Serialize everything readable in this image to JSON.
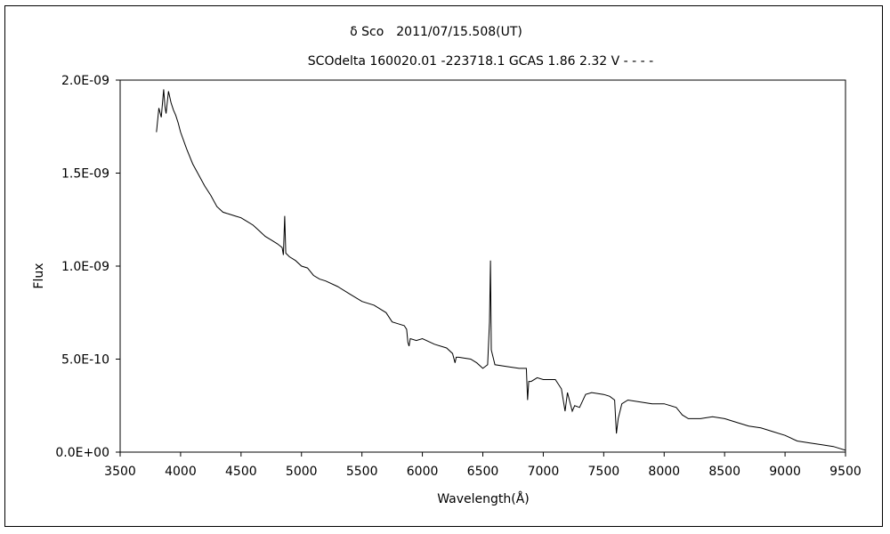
{
  "chart_data": {
    "type": "line",
    "title": "δ Sco　2011/07/15.508(UT)",
    "subtitle": "SCOdelta 160020.01 -223718.1 GCAS 1.86 2.32 V - - - -",
    "xlabel": "Wavelength(Å)",
    "ylabel": "Flux",
    "xlim": [
      3500,
      9500
    ],
    "ylim": [
      0,
      2e-09
    ],
    "grid": false,
    "x_ticks": [
      "3500",
      "4000",
      "4500",
      "5000",
      "5500",
      "6000",
      "6500",
      "7000",
      "7500",
      "8000",
      "8500",
      "9000",
      "9500"
    ],
    "y_ticks": [
      "0.0E+00",
      "5.0E-10",
      "1.0E-09",
      "1.5E-09",
      "2.0E-09"
    ],
    "series": [
      {
        "color": "#000000",
        "x": [
          3800,
          3820,
          3840,
          3860,
          3870,
          3880,
          3900,
          3920,
          3940,
          3960,
          3980,
          4000,
          4050,
          4100,
          4150,
          4200,
          4250,
          4300,
          4350,
          4400,
          4450,
          4500,
          4550,
          4600,
          4650,
          4700,
          4750,
          4800,
          4840,
          4850,
          4861,
          4870,
          4900,
          4950,
          5000,
          5050,
          5100,
          5150,
          5200,
          5300,
          5400,
          5500,
          5600,
          5700,
          5750,
          5800,
          5850,
          5870,
          5880,
          5890,
          5900,
          5950,
          6000,
          6100,
          6200,
          6250,
          6270,
          6280,
          6300,
          6400,
          6450,
          6500,
          6540,
          6555,
          6563,
          6570,
          6600,
          6700,
          6800,
          6860,
          6870,
          6880,
          6900,
          6950,
          7000,
          7100,
          7150,
          7180,
          7200,
          7240,
          7260,
          7300,
          7350,
          7400,
          7500,
          7550,
          7590,
          7605,
          7620,
          7650,
          7700,
          7800,
          7900,
          8000,
          8100,
          8150,
          8200,
          8300,
          8400,
          8500,
          8600,
          8700,
          8800,
          8900,
          9000,
          9100,
          9200,
          9300,
          9400,
          9450,
          9500
        ],
        "y": [
          1.72e-09,
          1.85e-09,
          1.8e-09,
          1.95e-09,
          1.86e-09,
          1.82e-09,
          1.94e-09,
          1.88e-09,
          1.84e-09,
          1.81e-09,
          1.77e-09,
          1.72e-09,
          1.63e-09,
          1.55e-09,
          1.49e-09,
          1.43e-09,
          1.38e-09,
          1.32e-09,
          1.29e-09,
          1.28e-09,
          1.27e-09,
          1.26e-09,
          1.24e-09,
          1.22e-09,
          1.19e-09,
          1.16e-09,
          1.14e-09,
          1.12e-09,
          1.1e-09,
          1.06e-09,
          1.27e-09,
          1.07e-09,
          1.05e-09,
          1.03e-09,
          1e-09,
          9.9e-10,
          9.5e-10,
          9.3e-10,
          9.2e-10,
          8.9e-10,
          8.5e-10,
          8.1e-10,
          7.9e-10,
          7.5e-10,
          7e-10,
          6.9e-10,
          6.8e-10,
          6.6e-10,
          5.9e-10,
          5.7e-10,
          6.1e-10,
          6e-10,
          6.1e-10,
          5.8e-10,
          5.6e-10,
          5.3e-10,
          4.8e-10,
          5.1e-10,
          5.1e-10,
          5e-10,
          4.8e-10,
          4.5e-10,
          4.7e-10,
          7e-10,
          1.03e-09,
          5.5e-10,
          4.7e-10,
          4.6e-10,
          4.5e-10,
          4.5e-10,
          2.8e-10,
          3.8e-10,
          3.8e-10,
          4e-10,
          3.9e-10,
          3.9e-10,
          3.4e-10,
          2.2e-10,
          3.2e-10,
          2.2e-10,
          2.5e-10,
          2.4e-10,
          3.1e-10,
          3.2e-10,
          3.1e-10,
          3e-10,
          2.8e-10,
          1e-10,
          1.8e-10,
          2.6e-10,
          2.8e-10,
          2.7e-10,
          2.6e-10,
          2.6e-10,
          2.4e-10,
          2e-10,
          1.8e-10,
          1.8e-10,
          1.9e-10,
          1.8e-10,
          1.6e-10,
          1.4e-10,
          1.3e-10,
          1.1e-10,
          9e-11,
          6e-11,
          5e-11,
          4e-11,
          3e-11,
          2e-11,
          1e-11
        ]
      }
    ]
  }
}
